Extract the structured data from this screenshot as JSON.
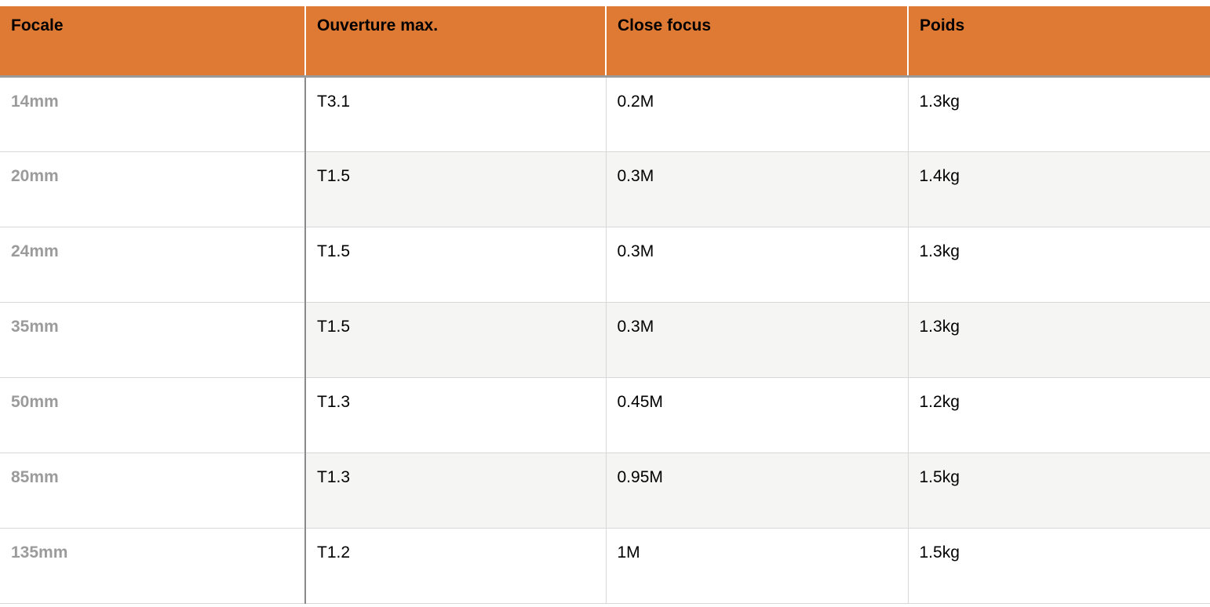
{
  "table": {
    "columns": [
      {
        "label": "Focale"
      },
      {
        "label": "Ouverture max."
      },
      {
        "label": "Close focus"
      },
      {
        "label": "Poids"
      }
    ],
    "rows": [
      {
        "focale": "14mm",
        "ouverture": "T3.1",
        "close_focus": "0.2M",
        "poids": "1.3kg"
      },
      {
        "focale": "20mm",
        "ouverture": "T1.5",
        "close_focus": "0.3M",
        "poids": "1.4kg"
      },
      {
        "focale": "24mm",
        "ouverture": "T1.5",
        "close_focus": "0.3M",
        "poids": "1.3kg"
      },
      {
        "focale": "35mm",
        "ouverture": "T1.5",
        "close_focus": "0.3M",
        "poids": "1.3kg"
      },
      {
        "focale": "50mm",
        "ouverture": "T1.3",
        "close_focus": "0.45M",
        "poids": "1.2kg"
      },
      {
        "focale": "85mm",
        "ouverture": "T1.3",
        "close_focus": "0.95M",
        "poids": "1.5kg"
      },
      {
        "focale": "135mm",
        "ouverture": "T1.2",
        "close_focus": "1M",
        "poids": "1.5kg"
      }
    ]
  },
  "colors": {
    "header_bg": "#de7a33",
    "header_text": "#000000",
    "row_bg": "#ffffff",
    "row_alt_bg": "#f5f5f4",
    "first_col_text": "#9b9b9b",
    "body_text": "#000000",
    "border_light": "#d8d8d8",
    "border_dark": "#8a8a8a",
    "header_bottom_border": "#9a9a9a",
    "header_separator": "#ffffff"
  }
}
